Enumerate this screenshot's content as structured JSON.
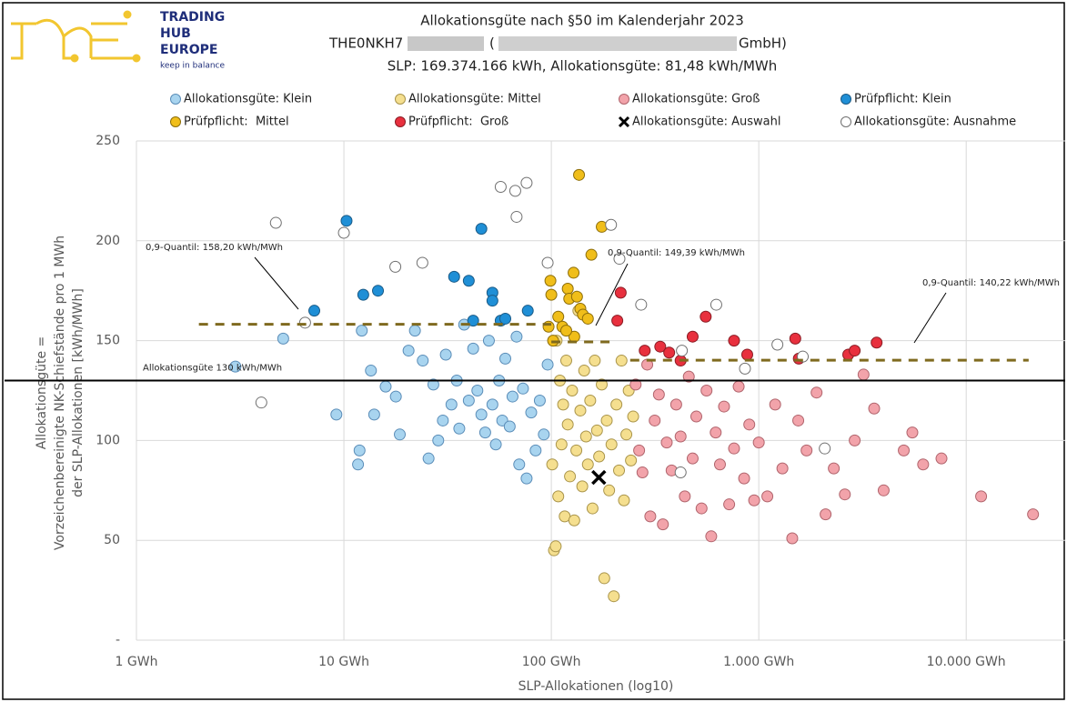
{
  "logo": {
    "lines": [
      "TRADING",
      "HUB",
      "EUROPE"
    ],
    "tagline": "keep in balance"
  },
  "chart_data": {
    "type": "scatter",
    "title": "Allokationsgüte nach §50 im Kalenderjahr 2023",
    "subtitle_parts": [
      "THE0NKH7",
      "(",
      "GmbH)"
    ],
    "summary": "SLP: 169.374.166 kWh, Allokationsgüte: 81,48 kWh/MWh",
    "x_label": "SLP-Allokationen (log10)",
    "y_label_lines": [
      "Allokationsgüte =",
      "Vorzeichenbereinigte NK-Schiefstände pro 1 MWh",
      "der SLP-Allokationen [kWh/MWh]"
    ],
    "x_log": true,
    "xlim": [
      1,
      30000
    ],
    "xticks": [
      {
        "value": 1,
        "label": "1 GWh"
      },
      {
        "value": 10,
        "label": "10 GWh"
      },
      {
        "value": 100,
        "label": "100 GWh"
      },
      {
        "value": 1000,
        "label": "1.000 GWh"
      },
      {
        "value": 10000,
        "label": "10.000 GWh"
      }
    ],
    "ylim": [
      0,
      250
    ],
    "yticks": [
      {
        "value": 0,
        "label": "-"
      },
      50,
      100,
      150,
      200,
      250
    ],
    "grid": true,
    "legend": "top",
    "series": [
      {
        "name": "Allokationsgüte: Klein",
        "marker": "circle",
        "color": "#a8d4ef",
        "edge_color": "#5b8db8",
        "x": [
          3.0,
          5.1,
          9.2,
          11.7,
          11.9,
          12.2,
          13.5,
          14.0,
          15.9,
          17.8,
          18.6,
          20.5,
          22,
          24,
          25.6,
          27,
          28.5,
          30,
          31,
          33,
          35,
          36,
          38,
          40,
          42,
          44,
          46,
          48,
          50,
          52,
          54,
          56,
          58,
          60,
          63,
          65,
          68,
          70,
          73,
          76,
          80,
          84,
          88,
          92,
          96
        ],
        "values": [
          137,
          151,
          113,
          88,
          95,
          155,
          135,
          113,
          127,
          122,
          103,
          145,
          155,
          140,
          91,
          128,
          100,
          110,
          143,
          118,
          130,
          106,
          158,
          120,
          146,
          125,
          113,
          104,
          150,
          118,
          98,
          130,
          110,
          141,
          107,
          122,
          152,
          88,
          126,
          81,
          114,
          95,
          120,
          103,
          138
        ]
      },
      {
        "name": "Allokationsgüte: Mittel",
        "marker": "circle",
        "color": "#f5df8f",
        "edge_color": "#a9944a",
        "x": [
          101,
          103,
          105,
          106,
          108,
          110,
          112,
          114,
          116,
          118,
          120,
          123,
          126,
          129,
          132,
          135,
          138,
          141,
          144,
          147,
          150,
          154,
          158,
          162,
          166,
          170,
          175,
          180,
          185,
          190,
          195,
          200,
          206,
          212,
          218,
          224,
          230,
          236,
          242,
          248
        ],
        "values": [
          88,
          45,
          47,
          150,
          72,
          130,
          98,
          118,
          62,
          140,
          108,
          82,
          125,
          60,
          95,
          165,
          115,
          77,
          135,
          102,
          88,
          120,
          66,
          140,
          105,
          92,
          128,
          31,
          110,
          75,
          98,
          22,
          118,
          85,
          140,
          70,
          103,
          125,
          90,
          112
        ]
      },
      {
        "name": "Allokationsgüte: Groß",
        "marker": "circle",
        "color": "#f2a3aa",
        "edge_color": "#b0646c",
        "x": [
          255,
          265,
          275,
          290,
          300,
          315,
          330,
          345,
          360,
          380,
          400,
          420,
          440,
          460,
          480,
          500,
          530,
          560,
          590,
          620,
          650,
          680,
          720,
          760,
          800,
          850,
          900,
          950,
          1000,
          1100,
          1200,
          1300,
          1450,
          1550,
          1700,
          1900,
          2100,
          2300,
          2600,
          2900,
          3200,
          3600,
          4000,
          5000,
          5500,
          6200,
          7600,
          11800,
          21000
        ],
        "values": [
          128,
          95,
          84,
          138,
          62,
          110,
          123,
          58,
          99,
          85,
          118,
          102,
          72,
          132,
          91,
          112,
          66,
          125,
          52,
          104,
          88,
          117,
          68,
          96,
          127,
          81,
          108,
          70,
          99,
          72,
          118,
          86,
          51,
          110,
          95,
          124,
          63,
          86,
          73,
          100,
          133,
          116,
          75,
          95,
          104,
          88,
          91,
          72,
          63
        ]
      },
      {
        "name": "Prüfpflicht: Klein",
        "marker": "circle",
        "color": "#1f8fd6",
        "edge_color": "#1a5a86",
        "x": [
          7.2,
          10.3,
          12.4,
          14.6,
          34,
          40,
          46,
          52,
          52,
          42,
          57,
          60,
          77
        ],
        "values": [
          165,
          210,
          173,
          175,
          182,
          180,
          206,
          174,
          170,
          160,
          160,
          161,
          165
        ]
      },
      {
        "name": "Prüfpflicht:  Mittel",
        "marker": "circle",
        "color": "#f0be1a",
        "edge_color": "#8c6d0a",
        "x": [
          136,
          175,
          156,
          99,
          128,
          100,
          120,
          122,
          133,
          138,
          97,
          113,
          129,
          102,
          118,
          142,
          150,
          108
        ],
        "values": [
          233,
          207,
          193,
          180,
          184,
          173,
          176,
          171,
          172,
          166,
          157,
          157,
          152,
          150,
          155,
          163,
          161,
          162
        ]
      },
      {
        "name": "Prüfpflicht:  Groß",
        "marker": "circle",
        "color": "#e8303e",
        "edge_color": "#8a1c24",
        "x": [
          216,
          208,
          282,
          335,
          480,
          555,
          420,
          760,
          880,
          1500,
          1560,
          2700,
          2900,
          3700,
          370
        ],
        "values": [
          174,
          160,
          145,
          147,
          152,
          162,
          140,
          150,
          143,
          151,
          141,
          143,
          145,
          149,
          144
        ]
      },
      {
        "name": "Allokationsgüte: Auswahl",
        "marker": "x",
        "color": "#000000",
        "edge_color": "#000000",
        "x": [
          169.374166
        ],
        "values": [
          81.48
        ]
      },
      {
        "name": "Allokationsgüte: Ausnahme",
        "marker": "circle",
        "color": "#ffffff",
        "edge_color": "#707070",
        "x": [
          4.0,
          4.7,
          6.5,
          10,
          17.7,
          23.9,
          57,
          67,
          68,
          76,
          96,
          194,
          213,
          271,
          420,
          426,
          624,
          858,
          1230,
          1630,
          2080
        ],
        "values": [
          119,
          209,
          159,
          204,
          187,
          189,
          227,
          225,
          212,
          229,
          189,
          208,
          191,
          168,
          84,
          145,
          168,
          136,
          148,
          142,
          96
        ]
      }
    ],
    "reference_lines": [
      {
        "label": "Allokationsgüte 130 kWh/MWh",
        "y": 130,
        "color": "#000000"
      }
    ],
    "quantile_lines": [
      {
        "label": "0,9-Quantil: 158,20 kWh/MWh",
        "y": 158.2,
        "x": [
          2,
          100
        ],
        "color": "#7f6a1f"
      },
      {
        "label": "0,9-Quantil: 149,39 kWh/MWh",
        "y": 149.39,
        "x": [
          100,
          200
        ],
        "color": "#7f6a1f"
      },
      {
        "label": "0,9-Quantil: 140,22 kWh/MWh",
        "y": 140.22,
        "x": [
          240,
          20000
        ],
        "color": "#7f6a1f"
      }
    ]
  }
}
